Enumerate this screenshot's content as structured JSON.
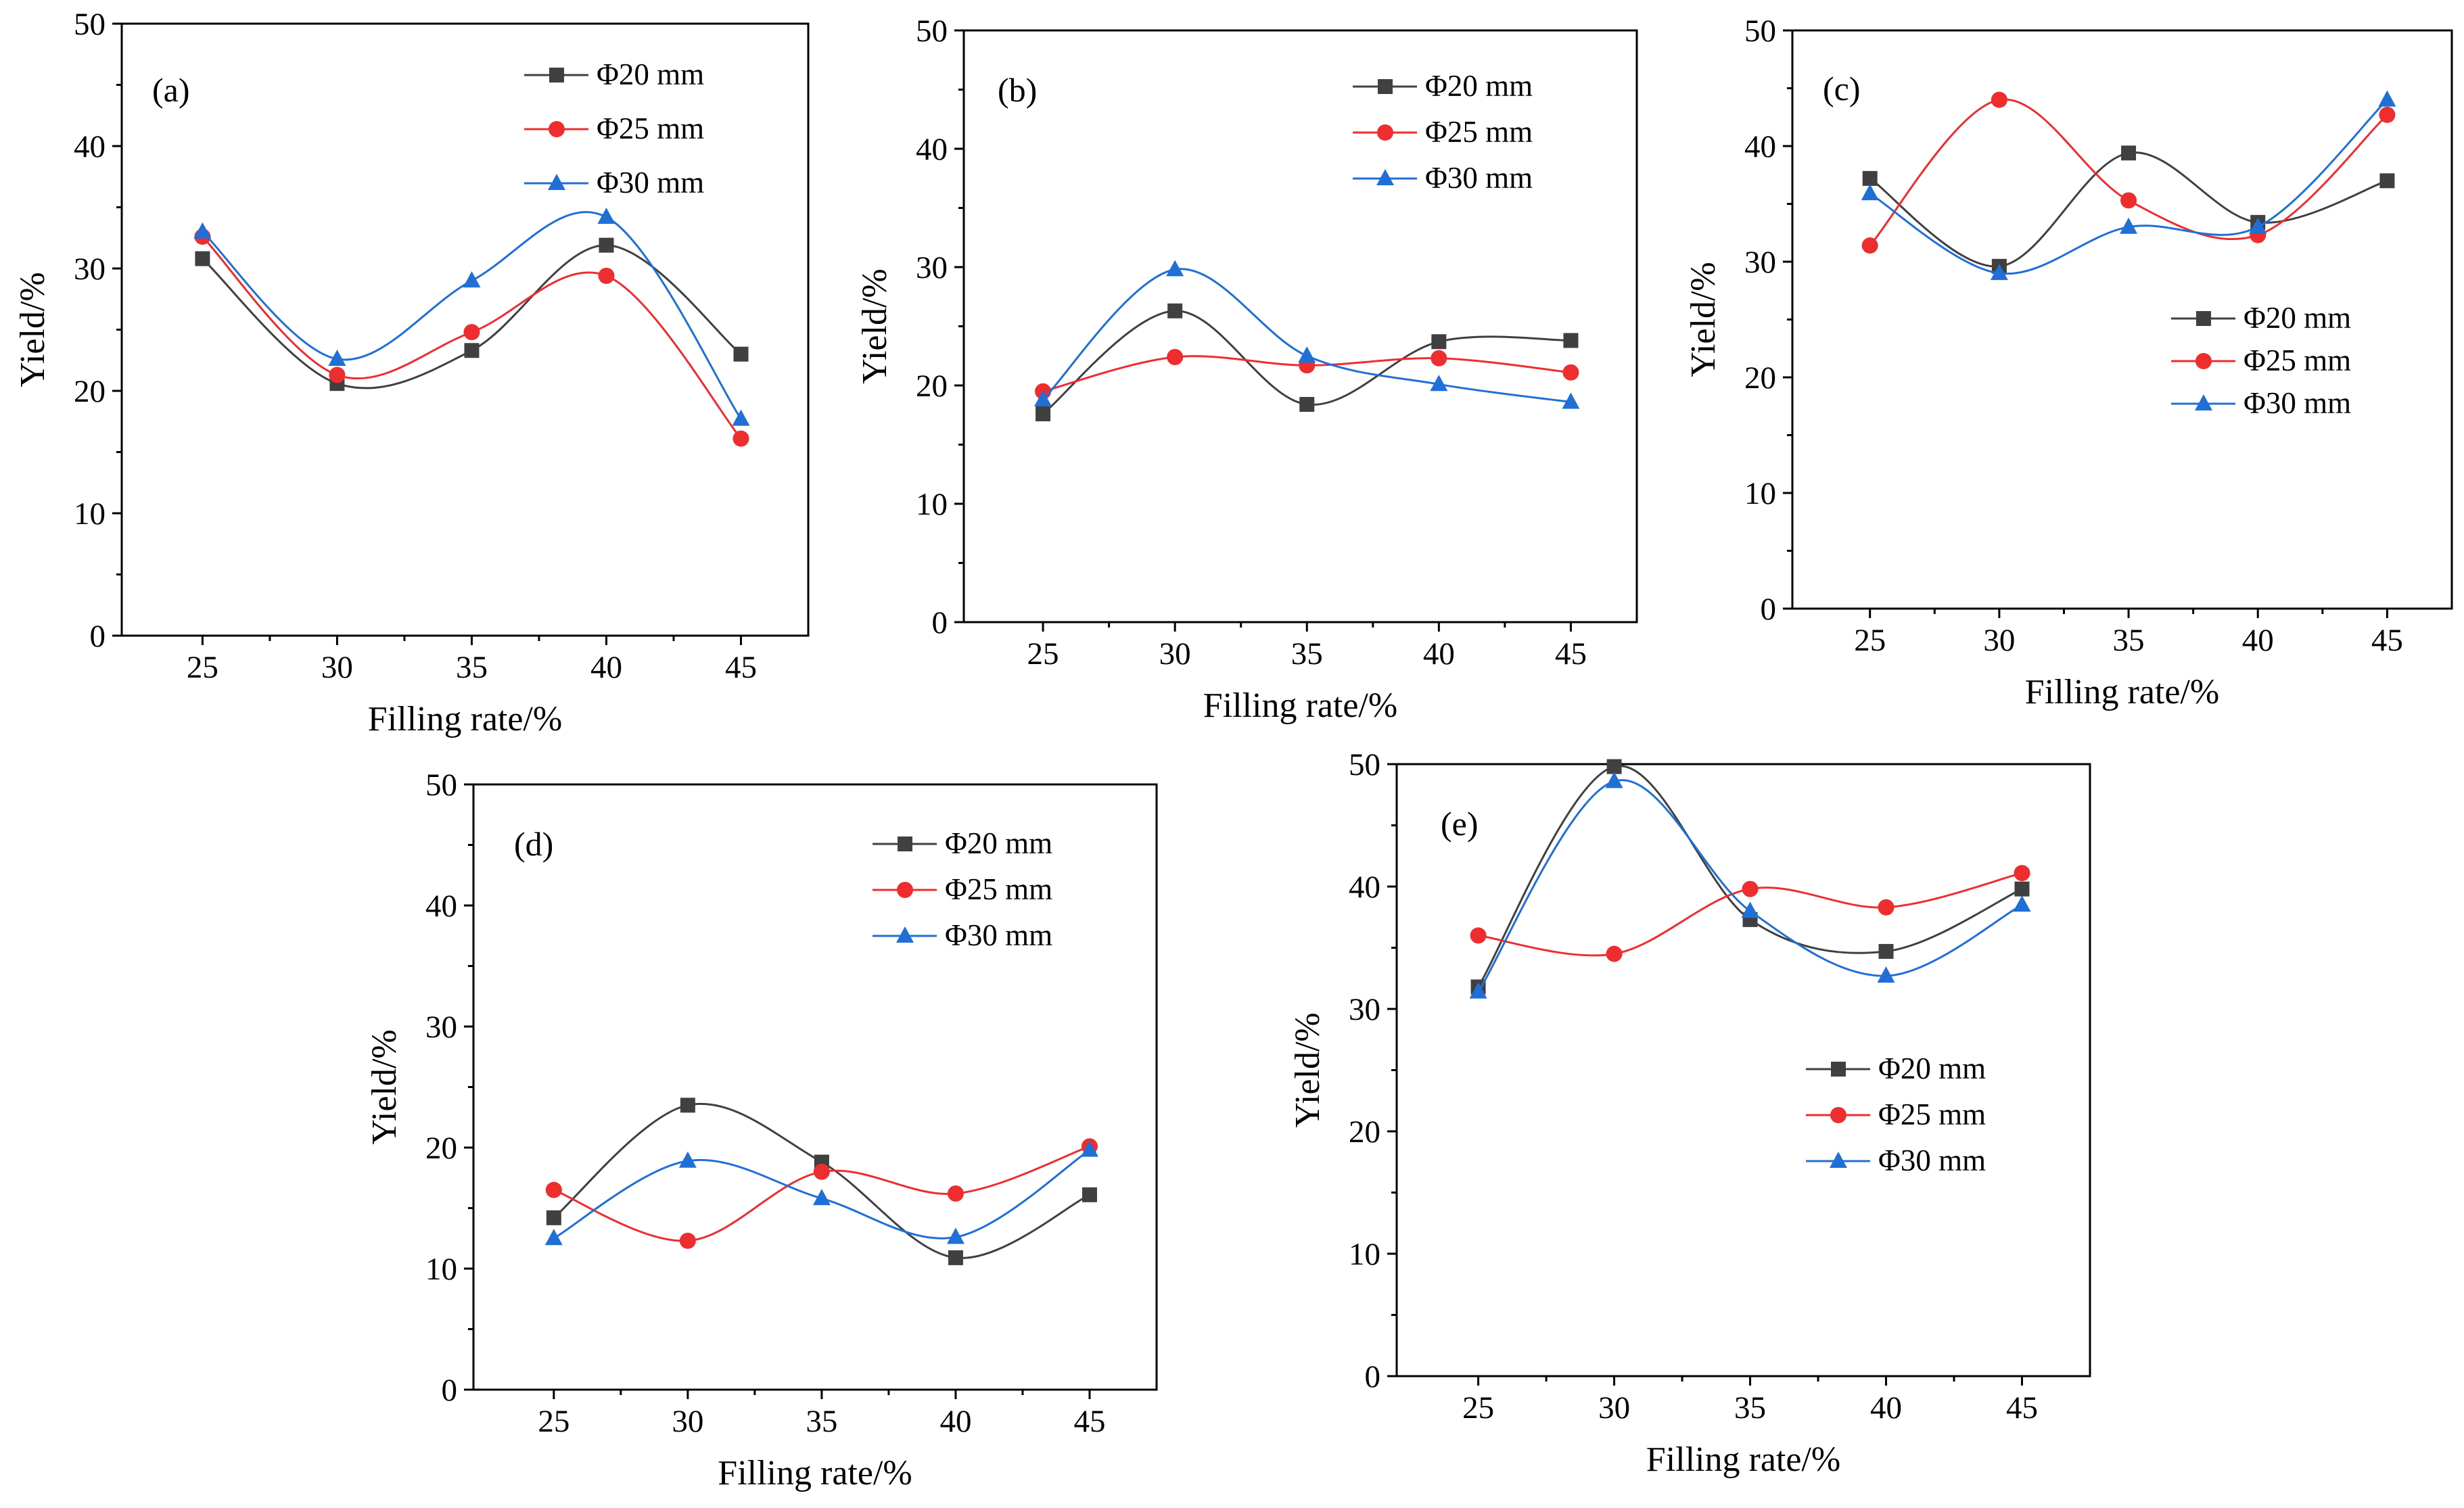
{
  "figure": {
    "colors": {
      "s20": "#404040",
      "s25": "#ee2e2e",
      "s30": "#1f6fd6",
      "axis": "#000000"
    }
  },
  "chart_data": [
    {
      "panel": "(a)",
      "type": "line",
      "xlabel": "Filling rate/%",
      "ylabel": "Yield/%",
      "x": [
        25,
        30,
        35,
        40,
        45
      ],
      "xlim": [
        22,
        47.5
      ],
      "ylim": [
        0,
        50
      ],
      "yticks": [
        0,
        10,
        20,
        30,
        40,
        50
      ],
      "legend_position": "top-right",
      "series": [
        {
          "name": "Φ20 mm",
          "marker": "square",
          "values": [
            30.8,
            20.6,
            23.3,
            31.9,
            23.0
          ]
        },
        {
          "name": "Φ25 mm",
          "marker": "circle",
          "values": [
            32.6,
            21.3,
            24.8,
            29.4,
            16.1
          ]
        },
        {
          "name": "Φ30 mm",
          "marker": "triangle",
          "values": [
            33.0,
            22.6,
            29.0,
            34.2,
            17.7
          ]
        }
      ]
    },
    {
      "panel": "(b)",
      "type": "line",
      "xlabel": "Filling rate/%",
      "ylabel": "Yield/%",
      "x": [
        25,
        30,
        35,
        40,
        45
      ],
      "xlim": [
        22,
        47.5
      ],
      "ylim": [
        0,
        50
      ],
      "yticks": [
        0,
        10,
        20,
        30,
        40,
        50
      ],
      "legend_position": "top-right",
      "series": [
        {
          "name": "Φ20 mm",
          "marker": "square",
          "values": [
            17.6,
            26.3,
            18.4,
            23.7,
            23.8
          ]
        },
        {
          "name": "Φ25 mm",
          "marker": "circle",
          "values": [
            19.5,
            22.4,
            21.7,
            22.3,
            21.1
          ]
        },
        {
          "name": "Φ30 mm",
          "marker": "triangle",
          "values": [
            18.8,
            29.8,
            22.5,
            20.1,
            18.6
          ]
        }
      ]
    },
    {
      "panel": "(c)",
      "type": "line",
      "xlabel": "Filling rate/%",
      "ylabel": "Yield/%",
      "x": [
        25,
        30,
        35,
        40,
        45
      ],
      "xlim": [
        22,
        47.5
      ],
      "ylim": [
        0,
        50
      ],
      "yticks": [
        0,
        10,
        20,
        30,
        40,
        50
      ],
      "legend_position": "right",
      "series": [
        {
          "name": "Φ20 mm",
          "marker": "square",
          "values": [
            37.2,
            29.6,
            39.4,
            33.4,
            37.0
          ]
        },
        {
          "name": "Φ25 mm",
          "marker": "circle",
          "values": [
            31.4,
            44.0,
            35.3,
            32.3,
            42.7
          ]
        },
        {
          "name": "Φ30 mm",
          "marker": "triangle",
          "values": [
            35.9,
            29.0,
            33.0,
            33.0,
            44.0
          ]
        }
      ]
    },
    {
      "panel": "(d)",
      "type": "line",
      "xlabel": "Filling rate/%",
      "ylabel": "Yield/%",
      "x": [
        25,
        30,
        35,
        40,
        45
      ],
      "xlim": [
        22,
        47.5
      ],
      "ylim": [
        0,
        50
      ],
      "yticks": [
        0,
        10,
        20,
        30,
        40,
        50
      ],
      "legend_position": "top-right",
      "series": [
        {
          "name": "Φ20 mm",
          "marker": "square",
          "values": [
            14.2,
            23.5,
            18.8,
            10.9,
            16.1
          ]
        },
        {
          "name": "Φ25 mm",
          "marker": "circle",
          "values": [
            16.5,
            12.3,
            18.0,
            16.2,
            20.1
          ]
        },
        {
          "name": "Φ30 mm",
          "marker": "triangle",
          "values": [
            12.5,
            18.9,
            15.8,
            12.6,
            19.8
          ]
        }
      ]
    },
    {
      "panel": "(e)",
      "type": "line",
      "xlabel": "Filling rate/%",
      "ylabel": "Yield/%",
      "x": [
        25,
        30,
        35,
        40,
        45
      ],
      "xlim": [
        22,
        47.5
      ],
      "ylim": [
        0,
        50
      ],
      "yticks": [
        0,
        10,
        20,
        30,
        40,
        50
      ],
      "legend_position": "center-right",
      "series": [
        {
          "name": "Φ20 mm",
          "marker": "square",
          "values": [
            31.8,
            49.8,
            37.3,
            34.7,
            39.8
          ]
        },
        {
          "name": "Φ25 mm",
          "marker": "circle",
          "values": [
            36.0,
            34.5,
            39.8,
            38.3,
            41.1
          ]
        },
        {
          "name": "Φ30 mm",
          "marker": "triangle",
          "values": [
            31.4,
            48.6,
            38.0,
            32.7,
            38.5
          ]
        }
      ]
    }
  ]
}
